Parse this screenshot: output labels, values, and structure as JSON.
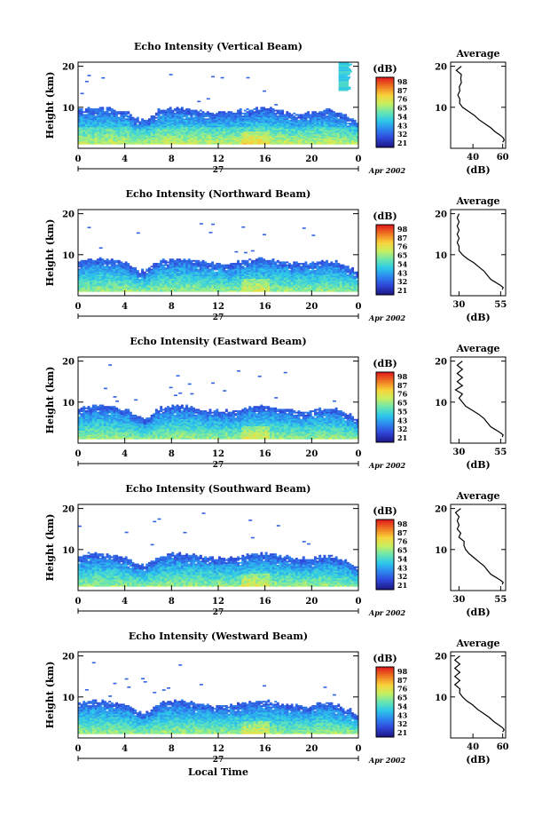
{
  "chart_data": [
    {
      "type": "heatmap",
      "title": "Echo Intensity (Vertical Beam)",
      "ylabel": "Height (km)",
      "y_ticks": [
        "20",
        "10"
      ],
      "x_ticks": [
        "0",
        "4",
        "8",
        "12",
        "16",
        "20",
        "0"
      ],
      "day_label": "27",
      "month_label": "Apr 2002",
      "colorbar": {
        "title": "(dB)",
        "ticks": [
          "98",
          "87",
          "76",
          "65",
          "54",
          "43",
          "32",
          "21"
        ]
      },
      "profile": {
        "title": "Average",
        "x_ticks": [
          "40",
          "60"
        ],
        "y_ticks": [
          "20",
          "10"
        ],
        "xlabel": "(dB)",
        "xlim": [
          25,
          62
        ],
        "values": [
          [
            60,
            1.5
          ],
          [
            61,
            2
          ],
          [
            60.5,
            2.5
          ],
          [
            59,
            3
          ],
          [
            57,
            3.5
          ],
          [
            55,
            4
          ],
          [
            52,
            5
          ],
          [
            48,
            6
          ],
          [
            44,
            7
          ],
          [
            41,
            8
          ],
          [
            37,
            9
          ],
          [
            33,
            10
          ],
          [
            31,
            11
          ],
          [
            30,
            12
          ],
          [
            31,
            13
          ],
          [
            30,
            14
          ],
          [
            32,
            15
          ],
          [
            31,
            16
          ],
          [
            33,
            17
          ],
          [
            31,
            18
          ],
          [
            30,
            19
          ],
          [
            31,
            20
          ]
        ]
      }
    },
    {
      "type": "heatmap",
      "title": "Echo Intensity (Northward Beam)",
      "ylabel": "Height (km)",
      "y_ticks": [
        "20",
        "10"
      ],
      "x_ticks": [
        "0",
        "4",
        "8",
        "12",
        "16",
        "20",
        "0"
      ],
      "day_label": "27",
      "month_label": "Apr 2002",
      "colorbar": {
        "title": "(dB)",
        "ticks": [
          "98",
          "87",
          "76",
          "65",
          "54",
          "43",
          "32",
          "21"
        ]
      },
      "profile": {
        "title": "Average",
        "x_ticks": [
          "30",
          "55"
        ],
        "y_ticks": [
          "20",
          "10"
        ],
        "xlabel": "(dB)",
        "xlim": [
          25,
          58
        ],
        "values": [
          [
            56,
            1.5
          ],
          [
            56.5,
            2
          ],
          [
            55,
            2.5
          ],
          [
            53,
            3
          ],
          [
            51,
            3.5
          ],
          [
            49,
            4
          ],
          [
            47,
            5
          ],
          [
            45,
            6
          ],
          [
            42,
            7
          ],
          [
            39,
            8
          ],
          [
            35,
            9
          ],
          [
            32,
            10
          ],
          [
            30,
            11
          ],
          [
            29,
            12
          ],
          [
            30,
            13
          ],
          [
            29,
            14
          ],
          [
            30,
            15
          ],
          [
            29,
            16
          ],
          [
            30,
            17
          ],
          [
            29,
            18
          ],
          [
            30,
            19
          ],
          [
            29,
            20
          ]
        ]
      }
    },
    {
      "type": "heatmap",
      "title": "Echo Intensity (Eastward Beam)",
      "ylabel": "Height (km)",
      "y_ticks": [
        "20",
        "10"
      ],
      "x_ticks": [
        "0",
        "4",
        "8",
        "12",
        "16",
        "20",
        "0"
      ],
      "day_label": "27",
      "month_label": "Apr 2002",
      "colorbar": {
        "title": "(dB)",
        "ticks": [
          "98",
          "87",
          "76",
          "65",
          "55",
          "43",
          "32",
          "21"
        ]
      },
      "profile": {
        "title": "Average",
        "x_ticks": [
          "30",
          "55"
        ],
        "y_ticks": [
          "20",
          "10"
        ],
        "xlabel": "(dB)",
        "xlim": [
          25,
          58
        ],
        "values": [
          [
            56,
            1.5
          ],
          [
            56.5,
            2
          ],
          [
            55,
            2.5
          ],
          [
            53,
            3
          ],
          [
            51,
            3.5
          ],
          [
            49,
            4
          ],
          [
            47,
            5
          ],
          [
            45,
            6
          ],
          [
            42,
            7
          ],
          [
            38,
            8
          ],
          [
            34,
            9
          ],
          [
            32,
            10
          ],
          [
            30,
            11
          ],
          [
            31,
            12
          ],
          [
            29,
            13
          ],
          [
            31,
            14
          ],
          [
            30,
            15
          ],
          [
            31,
            16
          ],
          [
            30,
            17
          ],
          [
            31,
            18
          ],
          [
            30,
            19
          ],
          [
            31,
            20
          ]
        ]
      }
    },
    {
      "type": "heatmap",
      "title": "Echo Intensity (Southward Beam)",
      "ylabel": "Height (km)",
      "y_ticks": [
        "20",
        "10"
      ],
      "x_ticks": [
        "0",
        "4",
        "8",
        "12",
        "16",
        "20",
        "0"
      ],
      "day_label": "27",
      "month_label": "Apr 2002",
      "colorbar": {
        "title": "(dB)",
        "ticks": [
          "98",
          "87",
          "76",
          "65",
          "54",
          "43",
          "32",
          "21"
        ]
      },
      "profile": {
        "title": "Average",
        "x_ticks": [
          "30",
          "55"
        ],
        "y_ticks": [
          "20",
          "10"
        ],
        "xlabel": "(dB)",
        "xlim": [
          25,
          58
        ],
        "values": [
          [
            56,
            1.5
          ],
          [
            56.5,
            2
          ],
          [
            55,
            2.5
          ],
          [
            53,
            3
          ],
          [
            51,
            3.5
          ],
          [
            49,
            4
          ],
          [
            47,
            5
          ],
          [
            45,
            6
          ],
          [
            42,
            7
          ],
          [
            39,
            8
          ],
          [
            36,
            9
          ],
          [
            34,
            10
          ],
          [
            33,
            11
          ],
          [
            32,
            12
          ],
          [
            31,
            13
          ],
          [
            30,
            14
          ],
          [
            30,
            15
          ],
          [
            29,
            16
          ],
          [
            30,
            17
          ],
          [
            29,
            18
          ],
          [
            29,
            19
          ],
          [
            30,
            20
          ]
        ]
      }
    },
    {
      "type": "heatmap",
      "title": "Echo Intensity (Westward Beam)",
      "ylabel": "Height (km)",
      "y_ticks": [
        "20",
        "10"
      ],
      "x_ticks": [
        "0",
        "4",
        "8",
        "12",
        "16",
        "20",
        "0"
      ],
      "day_label": "27",
      "month_label": "Apr 2002",
      "xlabel": "Local Time",
      "colorbar": {
        "title": "(dB)",
        "ticks": [
          "98",
          "87",
          "76",
          "65",
          "54",
          "43",
          "32",
          "21"
        ]
      },
      "profile": {
        "title": "Average",
        "x_ticks": [
          "40",
          "60"
        ],
        "y_ticks": [
          "20",
          "10"
        ],
        "xlabel": "(dB)",
        "xlim": [
          25,
          62
        ],
        "values": [
          [
            60,
            1.5
          ],
          [
            61,
            2
          ],
          [
            60,
            2.5
          ],
          [
            58,
            3
          ],
          [
            56,
            3.5
          ],
          [
            54,
            4
          ],
          [
            51,
            5
          ],
          [
            47,
            6
          ],
          [
            43,
            7
          ],
          [
            40,
            8
          ],
          [
            36,
            9
          ],
          [
            33,
            10
          ],
          [
            31,
            11
          ],
          [
            30,
            12
          ],
          [
            29,
            13
          ],
          [
            30,
            14
          ],
          [
            29,
            15
          ],
          [
            30,
            16
          ],
          [
            29,
            17
          ],
          [
            30,
            18
          ],
          [
            29,
            19
          ],
          [
            30,
            20
          ]
        ]
      }
    }
  ],
  "colors": {
    "scale": [
      "#1d1a8c",
      "#2f46d8",
      "#2d86f0",
      "#2cc8ea",
      "#69e6b0",
      "#c8f060",
      "#f8d23a",
      "#f07a22",
      "#e0201c"
    ]
  }
}
